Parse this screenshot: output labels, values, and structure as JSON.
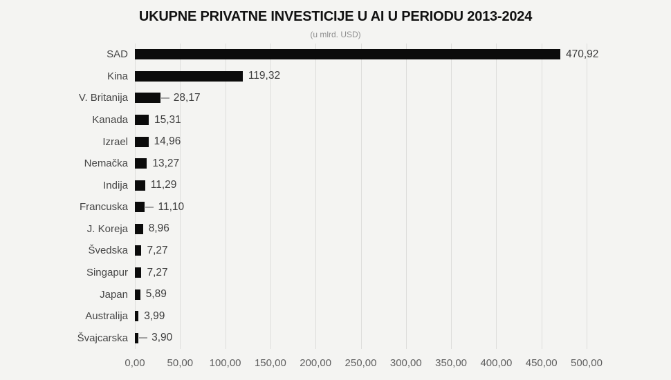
{
  "chart": {
    "title": "UKUPNE PRIVATNE INVESTICIJE U AI U PERIODU 2013-2024",
    "subtitle": "(u mlrd. USD)"
  },
  "chart_data": {
    "type": "bar",
    "orientation": "horizontal",
    "title": "UKUPNE PRIVATNE INVESTICIJE U AI U PERIODU 2013-2024",
    "subtitle": "(u mlrd. USD)",
    "categories": [
      "SAD",
      "Kina",
      "V. Britanija",
      "Kanada",
      "Izrael",
      "Nemačka",
      "Indija",
      "Francuska",
      "J. Koreja",
      "Švedska",
      "Singapur",
      "Japan",
      "Australija",
      "Švajcarska"
    ],
    "values": [
      470.92,
      119.32,
      28.17,
      15.31,
      14.96,
      13.27,
      11.29,
      11.1,
      8.96,
      7.27,
      7.27,
      5.89,
      3.99,
      3.9
    ],
    "value_labels": [
      "470,92",
      "119,32",
      "28,17",
      "15,31",
      "14,96",
      "13,27",
      "11,29",
      "11,10",
      "8,96",
      "7,27",
      "7,27",
      "5,89",
      "3,99",
      "3,90"
    ],
    "leader_line_rows": [
      2,
      7,
      13
    ],
    "xlim": [
      0,
      500
    ],
    "x_ticks": [
      0,
      50,
      100,
      150,
      200,
      250,
      300,
      350,
      400,
      450,
      500
    ],
    "x_tick_labels": [
      "0,00",
      "50,00",
      "100,00",
      "150,00",
      "200,00",
      "250,00",
      "300,00",
      "350,00",
      "400,00",
      "450,00",
      "500,00"
    ],
    "grid": "vertical",
    "legend": "none",
    "colors": {
      "background": "#f4f4f2",
      "bar": "#0b0b0b",
      "gridline": "#dddddb",
      "category_label": "#474747",
      "value_label": "#3d3d3d",
      "axis_label": "#5f5f5f",
      "title": "#121212",
      "subtitle": "#8f8f8f",
      "leader_dash": "#a3a3a3"
    }
  }
}
